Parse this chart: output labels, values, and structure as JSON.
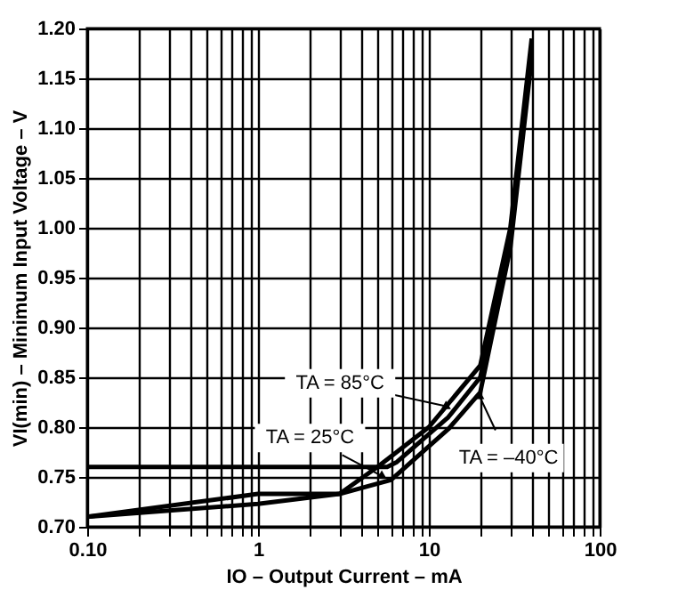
{
  "chart_data": {
    "type": "line",
    "xlabel": "IO – Output Current – mA",
    "ylabel": "VI(min) – Minimum Input Voltage – V",
    "series": [
      {
        "color": "#000000",
        "x": [
          0.1,
          1,
          3,
          5,
          10,
          20,
          30,
          40
        ],
        "values": [
          0.71,
          0.733,
          0.733,
          0.76,
          0.8,
          0.862,
          1.0,
          1.19
        ]
      },
      {
        "color": "#000000",
        "x": [
          0.1,
          5.7,
          6.5,
          13,
          20,
          30,
          40
        ],
        "values": [
          0.76,
          0.76,
          0.765,
          0.81,
          0.85,
          0.99,
          1.18
        ]
      },
      {
        "color": "#000000",
        "x": [
          0.1,
          1,
          3,
          6,
          13,
          20,
          30,
          40
        ],
        "values": [
          0.71,
          0.723,
          0.733,
          0.747,
          0.798,
          0.835,
          0.98,
          1.17
        ]
      }
    ],
    "annotations": [
      {
        "text": "TA = 85°C",
        "x": 12.6,
        "y": 0.821
      },
      {
        "text": "TA = 25°C",
        "x": 5.3,
        "y": 0.751
      },
      {
        "text": "TA = –40°C",
        "x": 19.8,
        "y": 0.831
      }
    ],
    "log": "x",
    "xlim": [
      0.1,
      100
    ],
    "xticks": [
      {
        "value": 0.1,
        "label": "0.10"
      },
      {
        "value": 0.2,
        "label": null
      },
      {
        "value": 0.3,
        "label": null
      },
      {
        "value": 0.4,
        "label": null
      },
      {
        "value": 0.5,
        "label": null
      },
      {
        "value": 0.6,
        "label": null
      },
      {
        "value": 0.7,
        "label": null
      },
      {
        "value": 0.8,
        "label": null
      },
      {
        "value": 0.9,
        "label": null
      },
      1,
      {
        "value": 2,
        "label": null
      },
      {
        "value": 3,
        "label": null
      },
      {
        "value": 4,
        "label": null
      },
      {
        "value": 5,
        "label": null
      },
      {
        "value": 6,
        "label": null
      },
      {
        "value": 7,
        "label": null
      },
      {
        "value": 8,
        "label": null
      },
      {
        "value": 9,
        "label": null
      },
      10,
      {
        "value": 20,
        "label": null
      },
      {
        "value": 30,
        "label": null
      },
      {
        "value": 40,
        "label": null
      },
      {
        "value": 50,
        "label": null
      },
      {
        "value": 60,
        "label": null
      },
      {
        "value": 70,
        "label": null
      },
      {
        "value": 80,
        "label": null
      },
      {
        "value": 90,
        "label": null
      },
      100
    ],
    "ylim": [
      0.7,
      1.2
    ],
    "yticks": [
      {
        "value": 0.7,
        "label": "0.70"
      },
      {
        "value": 0.75,
        "label": "0.75"
      },
      {
        "value": 0.8,
        "label": "0.80"
      },
      {
        "value": 0.85,
        "label": "0.85"
      },
      {
        "value": 0.9,
        "label": "0.90"
      },
      {
        "value": 0.95,
        "label": "0.95"
      },
      {
        "value": 1.0,
        "label": "1.00"
      },
      {
        "value": 1.05,
        "label": "1.05"
      },
      {
        "value": 1.1,
        "label": "1.10"
      },
      {
        "value": 1.15,
        "label": "1.15"
      },
      {
        "value": 1.2,
        "label": "1.20"
      }
    ],
    "grid": true,
    "marker": "none",
    "line_style": "solid"
  }
}
